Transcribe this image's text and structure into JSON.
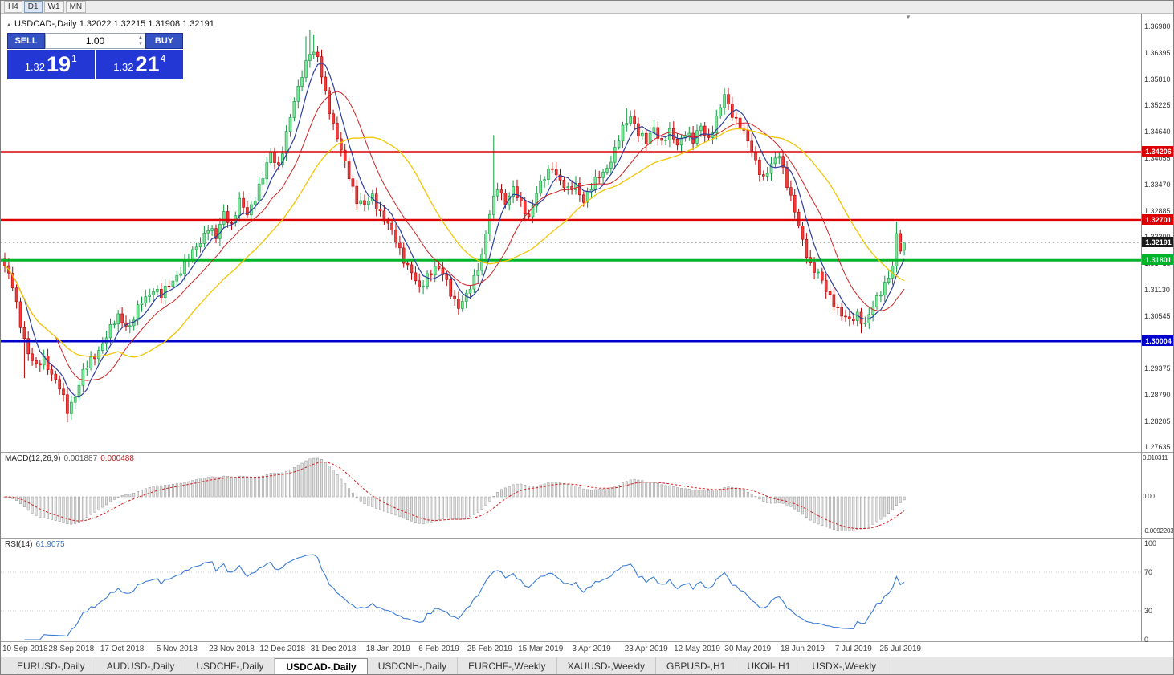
{
  "toolbar": {
    "buttons": [
      {
        "label": "H4",
        "active": false
      },
      {
        "label": "D1",
        "active": true
      },
      {
        "label": "W1",
        "active": false
      },
      {
        "label": "MN",
        "active": false
      }
    ]
  },
  "symbol_line": {
    "icon": "▴",
    "text": "USDCAD-,Daily 1.32022 1.32215 1.31908 1.32191"
  },
  "trade_panel": {
    "sell_label": "SELL",
    "buy_label": "BUY",
    "volume": "1.00",
    "sell_price": {
      "prefix": "1.32",
      "main": "19",
      "sup": "1"
    },
    "buy_price": {
      "prefix": "1.32",
      "main": "21",
      "sup": "4"
    },
    "panel_color": "#2337d4",
    "button_color": "#3552c3"
  },
  "chart_data": {
    "type": "candlestick",
    "symbol": "USDCAD-",
    "timeframe": "Daily",
    "current_bar": {
      "open": 1.32022,
      "high": 1.32215,
      "low": 1.31908,
      "close": 1.32191
    },
    "price_axis": {
      "max": 1.37283,
      "min": 1.27543
    },
    "y_axis_labels": [
      "1.36980",
      "1.36395",
      "1.35810",
      "1.35225",
      "1.34640",
      "1.34055",
      "1.33470",
      "1.32885",
      "1.32300",
      "1.31715",
      "1.31130",
      "1.30545",
      "1.29960",
      "1.29375",
      "1.28790",
      "1.28205",
      "1.27635"
    ],
    "x_axis_labels": [
      {
        "i": 3,
        "text": "10 Sep 2018"
      },
      {
        "i": 17,
        "text": "28 Sep 2018"
      },
      {
        "i": 30,
        "text": "17 Oct 2018"
      },
      {
        "i": 44,
        "text": "5 Nov 2018"
      },
      {
        "i": 58,
        "text": "23 Nov 2018"
      },
      {
        "i": 71,
        "text": "12 Dec 2018"
      },
      {
        "i": 84,
        "text": "31 Dec 2018"
      },
      {
        "i": 98,
        "text": "18 Jan 2019"
      },
      {
        "i": 111,
        "text": "6 Feb 2019"
      },
      {
        "i": 124,
        "text": "25 Feb 2019"
      },
      {
        "i": 137,
        "text": "15 Mar 2019"
      },
      {
        "i": 150,
        "text": "3 Apr 2019"
      },
      {
        "i": 164,
        "text": "23 Apr 2019"
      },
      {
        "i": 177,
        "text": "12 May 2019"
      },
      {
        "i": 190,
        "text": "30 May 2019"
      },
      {
        "i": 204,
        "text": "18 Jun 2019"
      },
      {
        "i": 217,
        "text": "7 Jul 2019"
      },
      {
        "i": 229,
        "text": "25 Jul 2019"
      }
    ],
    "horizontal_lines": [
      {
        "price": 1.34206,
        "label": "1.34206",
        "color": "#dd0000",
        "width": 2.4
      },
      {
        "price": 1.32701,
        "label": "1.32701",
        "color": "#dd0000",
        "width": 2.4
      },
      {
        "price": 1.31801,
        "label": "1.31801",
        "color": "#00b42a",
        "width": 3
      },
      {
        "price": 1.30004,
        "label": "1.30004",
        "color": "#0000cc",
        "width": 3
      }
    ],
    "current_price_tag": {
      "price": 1.32191,
      "label": "1.32191",
      "color": "#1a1a1a"
    },
    "candle_colors": {
      "up_fill": "#7ee59b",
      "up_stroke": "#0c9b3c",
      "down_fill": "#ef3e3e",
      "down_stroke": "#b80000"
    },
    "moving_averages": [
      {
        "period": 6,
        "color": "#2c3e9e",
        "width": 1.2
      },
      {
        "period": 14,
        "color": "#cc2222",
        "width": 1
      },
      {
        "period": 30,
        "color": "#f2c500",
        "width": 1.3
      }
    ],
    "close_path_anchors": [
      [
        0,
        1.3168
      ],
      [
        2,
        1.312
      ],
      [
        4,
        1.304
      ],
      [
        6,
        1.2975
      ],
      [
        8,
        1.294
      ],
      [
        10,
        1.2962
      ],
      [
        12,
        1.293
      ],
      [
        14,
        1.2895
      ],
      [
        16,
        1.2845
      ],
      [
        18,
        1.2882
      ],
      [
        20,
        1.293
      ],
      [
        23,
        1.2968
      ],
      [
        26,
        1.3012
      ],
      [
        29,
        1.3055
      ],
      [
        32,
        1.3032
      ],
      [
        35,
        1.3088
      ],
      [
        38,
        1.3118
      ],
      [
        40,
        1.31
      ],
      [
        43,
        1.3138
      ],
      [
        46,
        1.3168
      ],
      [
        49,
        1.3212
      ],
      [
        52,
        1.3252
      ],
      [
        54,
        1.3228
      ],
      [
        56,
        1.329
      ],
      [
        58,
        1.3258
      ],
      [
        60,
        1.3308
      ],
      [
        62,
        1.3285
      ],
      [
        64,
        1.3322
      ],
      [
        66,
        1.3362
      ],
      [
        68,
        1.342
      ],
      [
        70,
        1.3392
      ],
      [
        72,
        1.3458
      ],
      [
        74,
        1.3532
      ],
      [
        76,
        1.3598
      ],
      [
        78,
        1.3642
      ],
      [
        80,
        1.3628
      ],
      [
        82,
        1.3555
      ],
      [
        84,
        1.348
      ],
      [
        86,
        1.342
      ],
      [
        88,
        1.337
      ],
      [
        90,
        1.3315
      ],
      [
        92,
        1.33
      ],
      [
        94,
        1.3322
      ],
      [
        96,
        1.3288
      ],
      [
        98,
        1.3258
      ],
      [
        100,
        1.3222
      ],
      [
        102,
        1.3185
      ],
      [
        104,
        1.3152
      ],
      [
        106,
        1.3112
      ],
      [
        108,
        1.3148
      ],
      [
        110,
        1.3165
      ],
      [
        112,
        1.3148
      ],
      [
        114,
        1.311
      ],
      [
        116,
        1.3078
      ],
      [
        118,
        1.3098
      ],
      [
        120,
        1.314
      ],
      [
        122,
        1.3195
      ],
      [
        124,
        1.3282
      ],
      [
        126,
        1.3342
      ],
      [
        128,
        1.3312
      ],
      [
        130,
        1.3338
      ],
      [
        132,
        1.3302
      ],
      [
        134,
        1.3278
      ],
      [
        136,
        1.3332
      ],
      [
        138,
        1.3362
      ],
      [
        140,
        1.339
      ],
      [
        142,
        1.3358
      ],
      [
        144,
        1.3332
      ],
      [
        146,
        1.3348
      ],
      [
        148,
        1.3315
      ],
      [
        150,
        1.334
      ],
      [
        152,
        1.3368
      ],
      [
        154,
        1.3388
      ],
      [
        156,
        1.3422
      ],
      [
        158,
        1.3472
      ],
      [
        160,
        1.3505
      ],
      [
        162,
        1.3462
      ],
      [
        164,
        1.344
      ],
      [
        166,
        1.3478
      ],
      [
        168,
        1.3442
      ],
      [
        170,
        1.3462
      ],
      [
        172,
        1.3438
      ],
      [
        174,
        1.3468
      ],
      [
        176,
        1.3442
      ],
      [
        178,
        1.3478
      ],
      [
        180,
        1.3452
      ],
      [
        182,
        1.3492
      ],
      [
        184,
        1.3545
      ],
      [
        186,
        1.3508
      ],
      [
        188,
        1.3478
      ],
      [
        190,
        1.3442
      ],
      [
        192,
        1.3402
      ],
      [
        194,
        1.3362
      ],
      [
        196,
        1.3388
      ],
      [
        198,
        1.3418
      ],
      [
        200,
        1.3352
      ],
      [
        202,
        1.3285
      ],
      [
        204,
        1.3222
      ],
      [
        206,
        1.3172
      ],
      [
        208,
        1.3148
      ],
      [
        210,
        1.3112
      ],
      [
        212,
        1.3088
      ],
      [
        214,
        1.3058
      ],
      [
        216,
        1.3042
      ],
      [
        218,
        1.3062
      ],
      [
        220,
        1.3038
      ],
      [
        222,
        1.3075
      ],
      [
        224,
        1.3112
      ],
      [
        226,
        1.3148
      ],
      [
        227,
        1.3165
      ],
      [
        228,
        1.3232
      ],
      [
        229,
        1.3202
      ],
      [
        230,
        1.32191
      ]
    ],
    "wick_overrides": [
      {
        "i": 5,
        "low": 1.2918
      },
      {
        "i": 16,
        "low": 1.282
      },
      {
        "i": 77,
        "high": 1.3678
      },
      {
        "i": 78,
        "high": 1.3692
      },
      {
        "i": 79,
        "high": 1.3682
      },
      {
        "i": 125,
        "high": 1.3458
      },
      {
        "i": 159,
        "high": 1.3518
      },
      {
        "i": 184,
        "high": 1.3562
      },
      {
        "i": 219,
        "low": 1.3018
      },
      {
        "i": 228,
        "high": 1.3266
      }
    ],
    "macd": {
      "label": "MACD(12,26,9)",
      "value_main": "0.001887",
      "value_signal": "0.000488",
      "params": [
        12,
        26,
        9
      ],
      "axis_max": 0.010311,
      "axis_min": -0.0092203,
      "axis_labels": [
        "0.010311",
        "0.00",
        "-0.0092203"
      ],
      "histogram_fill": "#e3e3e3",
      "histogram_stroke": "#8f8f8f",
      "signal_color": "#cc2222"
    },
    "rsi": {
      "label": "RSI(14)",
      "value": "61.9075",
      "period": 14,
      "levels": [
        70,
        30
      ],
      "axis_labels": [
        "100",
        "70",
        "30",
        "0"
      ],
      "line_color": "#3a7bd5"
    }
  },
  "tabs": [
    {
      "label": "EURUSD-,Daily",
      "active": false
    },
    {
      "label": "AUDUSD-,Daily",
      "active": false
    },
    {
      "label": "USDCHF-,Daily",
      "active": false
    },
    {
      "label": "USDCAD-,Daily",
      "active": true
    },
    {
      "label": "USDCNH-,Daily",
      "active": false
    },
    {
      "label": "EURCHF-,Weekly",
      "active": false
    },
    {
      "label": "XAUUSD-,Weekly",
      "active": false
    },
    {
      "label": "GBPUSD-,H1",
      "active": false
    },
    {
      "label": "UKOil-,H1",
      "active": false
    },
    {
      "label": "USDX-,Weekly",
      "active": false
    }
  ]
}
